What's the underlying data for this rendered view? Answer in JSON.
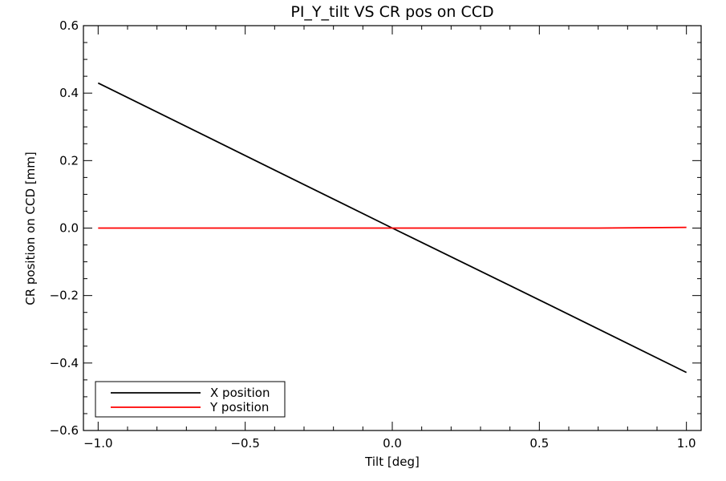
{
  "chart_data": {
    "type": "line",
    "title": "PI_Y_tilt VS CR pos on CCD",
    "xlabel": "Tilt [deg]",
    "ylabel": "CR position on CCD [mm]",
    "xlim": [
      -1.05,
      1.05
    ],
    "ylim": [
      -0.6,
      0.6
    ],
    "xticks": [
      -1.0,
      -0.5,
      0.0,
      0.5,
      1.0
    ],
    "xtick_labels": [
      "−1.0",
      "−0.5",
      "0.0",
      "0.5",
      "1.0"
    ],
    "yticks": [
      -0.6,
      -0.4,
      -0.2,
      0.0,
      0.2,
      0.4,
      0.6
    ],
    "ytick_labels": [
      "−0.6",
      "−0.4",
      "−0.2",
      "0.0",
      "0.2",
      "0.4",
      "0.6"
    ],
    "x_minor_step": 0.1,
    "y_minor_step": 0.05,
    "grid": false,
    "legend_position": "bottom-left",
    "series": [
      {
        "name": "X position",
        "color": "#000000",
        "x": [
          -1.0,
          -0.5,
          0.0,
          0.5,
          1.0
        ],
        "y": [
          0.43,
          0.215,
          0.0,
          -0.213,
          -0.428
        ]
      },
      {
        "name": "Y position",
        "color": "#ff0000",
        "x": [
          -1.0,
          -0.5,
          0.0,
          0.5,
          0.7,
          1.0
        ],
        "y": [
          0.0,
          0.0,
          0.0,
          0.0,
          0.0,
          0.002
        ]
      }
    ]
  }
}
